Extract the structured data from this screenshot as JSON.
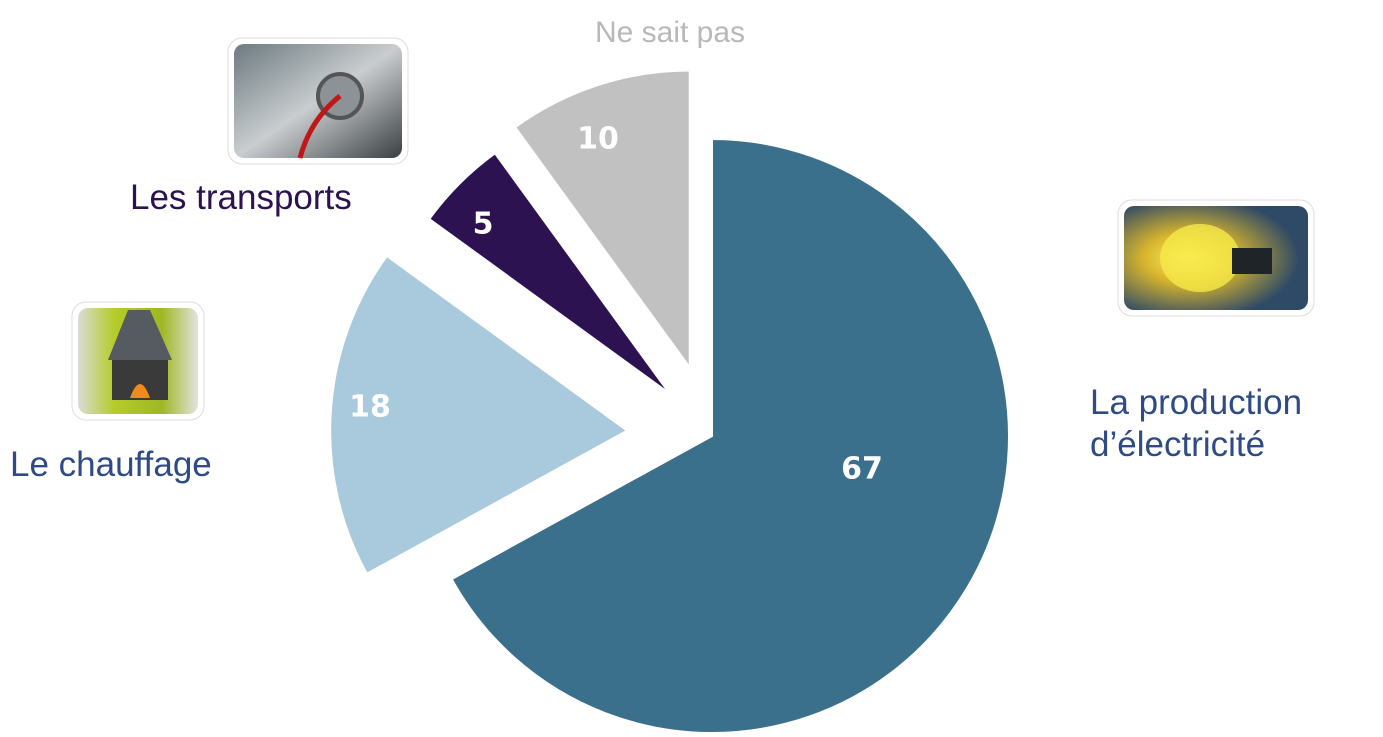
{
  "chart_data": {
    "type": "pie",
    "categories": [
      "La production d’électricité",
      "Le chauffage",
      "Les transports",
      "Ne sait pas"
    ],
    "values": [
      67,
      18,
      5,
      10
    ],
    "colors": [
      "#3b708c",
      "#a9c9dd",
      "#2c1250",
      "#c1c1c1"
    ],
    "label_colors": [
      "#2e4b86",
      "#2e4b86",
      "#2c1250",
      "#b8b8b8"
    ]
  }
}
